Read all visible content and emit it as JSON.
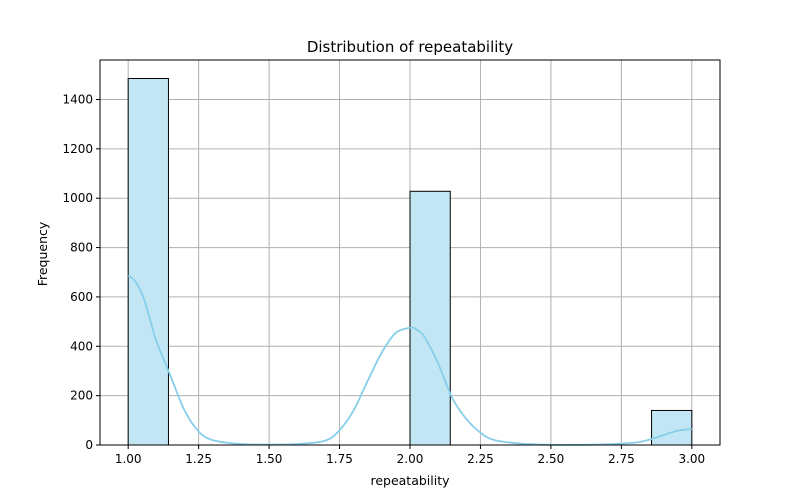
{
  "chart_data": {
    "type": "bar",
    "title": "Distribution of repeatability",
    "xlabel": "repeatability",
    "ylabel": "Frequency",
    "xlim": [
      0.9,
      3.1
    ],
    "ylim": [
      0,
      1560
    ],
    "x_ticks": [
      "1.00",
      "1.25",
      "1.50",
      "1.75",
      "2.00",
      "2.25",
      "2.50",
      "2.75",
      "3.00"
    ],
    "x_tick_values": [
      1.0,
      1.25,
      1.5,
      1.75,
      2.0,
      2.25,
      2.5,
      2.75,
      3.0
    ],
    "y_ticks": [
      "0",
      "200",
      "400",
      "600",
      "800",
      "1000",
      "1200",
      "1400"
    ],
    "y_tick_values": [
      0,
      200,
      400,
      600,
      800,
      1000,
      1200,
      1400
    ],
    "grid": true,
    "bins": [
      {
        "start": 1.0,
        "end": 1.1429,
        "count": 1485
      },
      {
        "start": 1.1429,
        "end": 1.2857,
        "count": 0
      },
      {
        "start": 1.2857,
        "end": 1.4286,
        "count": 0
      },
      {
        "start": 1.4286,
        "end": 1.5714,
        "count": 0
      },
      {
        "start": 1.5714,
        "end": 1.7143,
        "count": 0
      },
      {
        "start": 1.7143,
        "end": 1.8571,
        "count": 0
      },
      {
        "start": 1.8571,
        "end": 2.0,
        "count": 0
      },
      {
        "start": 2.0,
        "end": 2.1429,
        "count": 1028
      },
      {
        "start": 2.1429,
        "end": 2.2857,
        "count": 0
      },
      {
        "start": 2.2857,
        "end": 2.4286,
        "count": 0
      },
      {
        "start": 2.4286,
        "end": 2.5714,
        "count": 0
      },
      {
        "start": 2.5714,
        "end": 2.7143,
        "count": 0
      },
      {
        "start": 2.7143,
        "end": 2.8571,
        "count": 0
      },
      {
        "start": 2.8571,
        "end": 3.0,
        "count": 140
      }
    ],
    "kde": {
      "x": [
        1.0,
        1.02,
        1.05,
        1.08,
        1.1,
        1.15,
        1.2,
        1.25,
        1.3,
        1.4,
        1.5,
        1.6,
        1.7,
        1.75,
        1.8,
        1.85,
        1.9,
        1.95,
        2.0,
        2.02,
        2.05,
        2.1,
        2.15,
        2.2,
        2.25,
        2.3,
        2.4,
        2.5,
        2.6,
        2.7,
        2.8,
        2.85,
        2.9,
        2.95,
        3.0
      ],
      "y": [
        685,
        670,
        610,
        500,
        420,
        280,
        140,
        55,
        20,
        4,
        2,
        4,
        18,
        60,
        140,
        260,
        375,
        455,
        475,
        470,
        440,
        330,
        190,
        105,
        50,
        20,
        5,
        1,
        1,
        3,
        10,
        22,
        40,
        58,
        65
      ]
    },
    "bar_color": "#c3e6f4",
    "bar_edge_color": "#000000",
    "kde_color": "#87ceeb",
    "grid_color": "#b0b0b0"
  }
}
